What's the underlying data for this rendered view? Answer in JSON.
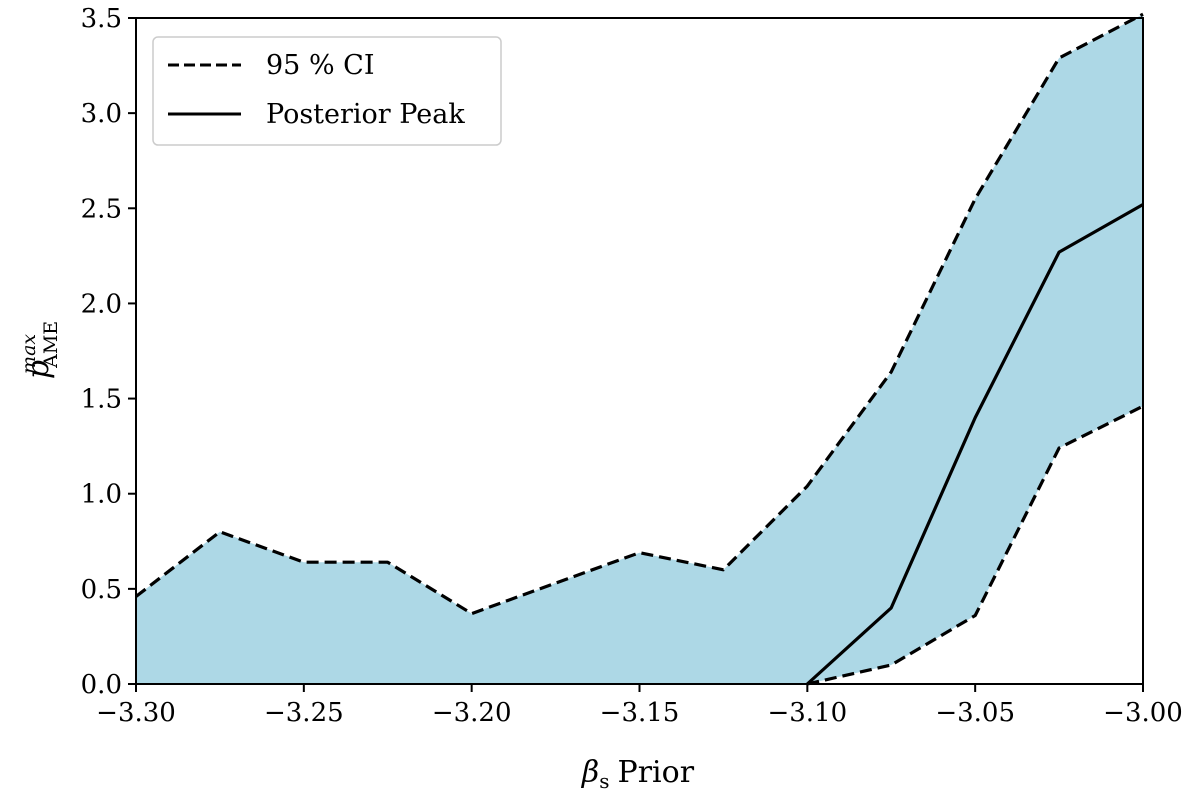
{
  "chart_data": {
    "type": "area",
    "title": "",
    "xlabel": "βs Prior",
    "xlabel_symbol": "β",
    "xlabel_sub": "s",
    "xlabel_text": "Prior",
    "ylabel": "p^max_AME",
    "ylabel_symbol": "p",
    "ylabel_sup": "max",
    "ylabel_sub": "AME",
    "xlim": [
      -3.3,
      -3.0
    ],
    "ylim": [
      0.0,
      3.5
    ],
    "grid": false,
    "legend_position": "top-left",
    "fill_color": "#add8e6",
    "x_ticks": [
      -3.3,
      -3.25,
      -3.2,
      -3.15,
      -3.1,
      -3.05,
      -3.0
    ],
    "x_tick_labels": [
      "−3.30",
      "−3.25",
      "−3.20",
      "−3.15",
      "−3.10",
      "−3.05",
      "−3.00"
    ],
    "y_ticks": [
      0.0,
      0.5,
      1.0,
      1.5,
      2.0,
      2.5,
      3.0,
      3.5
    ],
    "y_tick_labels": [
      "0.0",
      "0.5",
      "1.0",
      "1.5",
      "2.0",
      "2.5",
      "3.0",
      "3.5"
    ],
    "ci_upper": {
      "x": [
        -3.3,
        -3.275,
        -3.25,
        -3.225,
        -3.2,
        -3.175,
        -3.15,
        -3.125,
        -3.1,
        -3.075,
        -3.05,
        -3.025,
        -3.0
      ],
      "y": [
        0.46,
        0.8,
        0.64,
        0.64,
        0.37,
        0.53,
        0.69,
        0.6,
        1.04,
        1.64,
        2.55,
        3.29,
        3.52
      ]
    },
    "ci_lower": {
      "x": [
        -3.1,
        -3.075,
        -3.05,
        -3.025,
        -3.0
      ],
      "y": [
        0.0,
        0.1,
        0.36,
        1.24,
        1.46
      ]
    },
    "posterior_peak": {
      "x": [
        -3.1,
        -3.075,
        -3.05,
        -3.025,
        -3.0
      ],
      "y": [
        0.0,
        0.4,
        1.4,
        2.27,
        2.52
      ]
    },
    "legend": [
      {
        "label": "95 % CI",
        "style": "dashed"
      },
      {
        "label": "Posterior Peak",
        "style": "solid"
      }
    ]
  }
}
